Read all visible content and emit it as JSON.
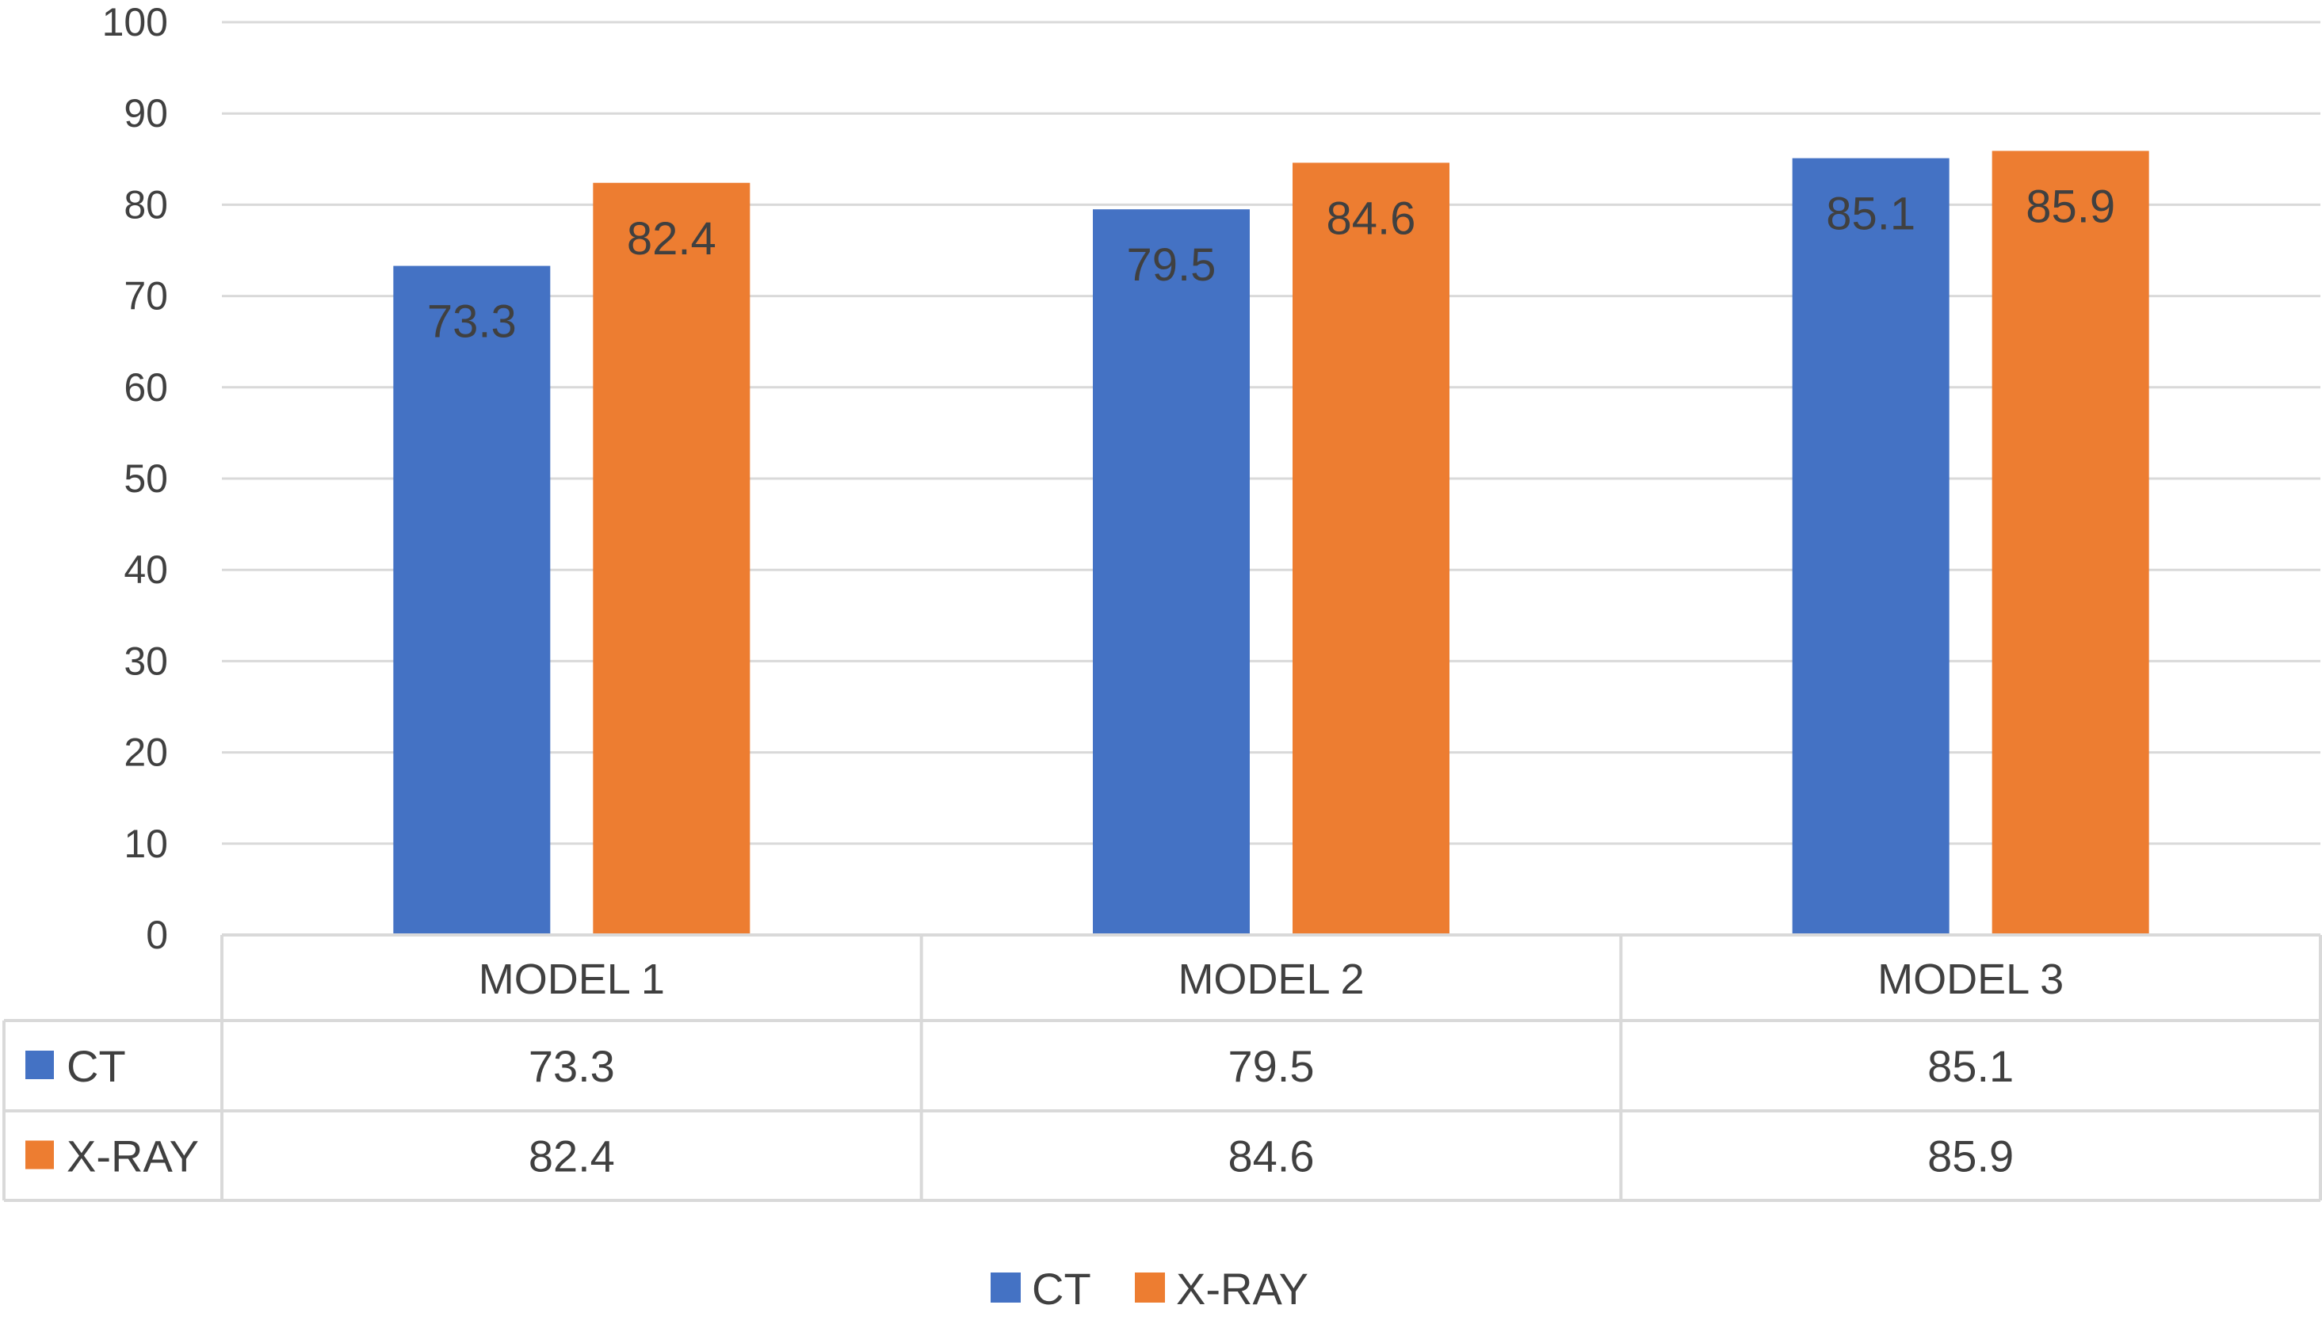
{
  "chart_data": {
    "type": "bar",
    "categories": [
      "MODEL 1",
      "MODEL 2",
      "MODEL 3"
    ],
    "series": [
      {
        "name": "CT",
        "values": [
          73.3,
          79.5,
          85.1
        ],
        "color": "#4472C4"
      },
      {
        "name": "X-RAY",
        "values": [
          82.4,
          84.6,
          85.9
        ],
        "color": "#ED7D31"
      }
    ],
    "ylim": [
      0,
      100
    ],
    "yticks": [
      0,
      10,
      20,
      30,
      40,
      50,
      60,
      70,
      80,
      90,
      100
    ],
    "grid": true,
    "data_table": true,
    "legend_position": "bottom",
    "data_labels": "inside-end"
  }
}
